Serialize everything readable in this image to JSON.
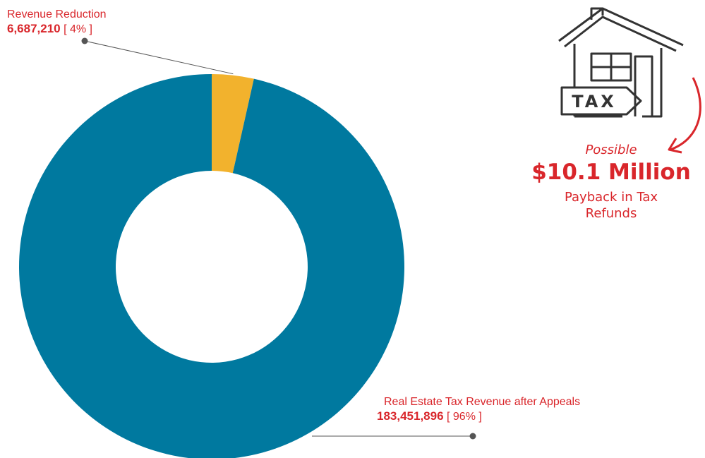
{
  "chart_data": {
    "type": "pie",
    "donut": true,
    "slices": [
      {
        "label": "Revenue Reduction",
        "value": 6687210,
        "value_label": "6,687,210",
        "pct_label": "[ 4% ]",
        "color": "#f2b22d"
      },
      {
        "label": "Real Estate Tax Revenue after Appeals",
        "value": 183451896,
        "value_label": "183,451,896",
        "pct_label": "[ 96% ]",
        "color": "#00799f"
      }
    ],
    "title": "",
    "legend": "none"
  },
  "callout": {
    "possible": "Possible",
    "amount": "$10.1 Million",
    "line1": "Payback in Tax",
    "line2": "Refunds"
  },
  "icon": {
    "name": "house-tax-icon",
    "label": "TAX",
    "stroke": "#333333"
  },
  "colors": {
    "accent": "#d9262b",
    "leader": "#555555"
  }
}
